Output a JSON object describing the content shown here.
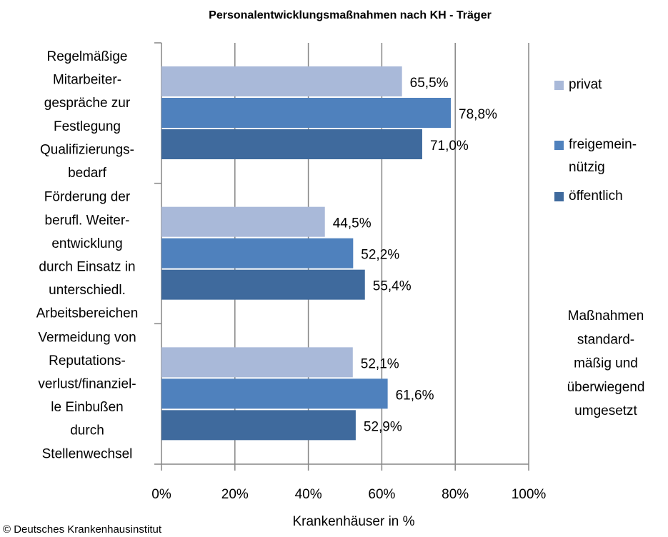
{
  "chart_data": {
    "type": "hbar",
    "title": "Personalentwicklungsmaßnahmen  nach KH - Träger",
    "categories": [
      [
        "Regelmäßige",
        "Mitarbeiter-",
        "gespräche zur",
        "Festlegung",
        "Qualifizierungs-",
        "bedarf"
      ],
      [
        "Förderung der",
        "berufl. Weiter-",
        "entwicklung",
        "durch Einsatz in",
        "unterschiedl.",
        "Arbeitsbereichen"
      ],
      [
        "Vermeidung von",
        "Reputations-",
        "verlust/finanziel-",
        "le Einbußen",
        "durch",
        "Stellenwechsel"
      ]
    ],
    "series": [
      {
        "name": "privat",
        "color": "#a9b9d9",
        "values": [
          65.5,
          44.5,
          52.1
        ],
        "value_labels": [
          "65,5%",
          "44,5%",
          "52,1%"
        ]
      },
      {
        "name": "freigemein-nützig",
        "color": "#4f81bd",
        "values": [
          78.8,
          52.2,
          61.6
        ],
        "value_labels": [
          "78,8%",
          "52,2%",
          "61,6%"
        ]
      },
      {
        "name": "öffentlich",
        "color": "#3f6a9d",
        "values": [
          71.0,
          55.4,
          52.9
        ],
        "value_labels": [
          "71,0%",
          "55,4%",
          "52,9%"
        ]
      }
    ],
    "xlim": [
      0,
      100
    ],
    "xticks": [
      {
        "value": 0,
        "label": "0%"
      },
      {
        "value": 20,
        "label": "20%"
      },
      {
        "value": 40,
        "label": "40%"
      },
      {
        "value": 60,
        "label": "60%"
      },
      {
        "value": 80,
        "label": "80%"
      },
      {
        "value": 100,
        "label": "100%"
      }
    ],
    "xlabel": "Krankenhäuser in %",
    "grid": true,
    "legend": "right",
    "annotation": [
      "Maßnahmen",
      "standard-",
      "mäßig und",
      "überwiegend",
      "umgesetzt"
    ],
    "source": "© Deutsches Krankenhausinstitut"
  }
}
